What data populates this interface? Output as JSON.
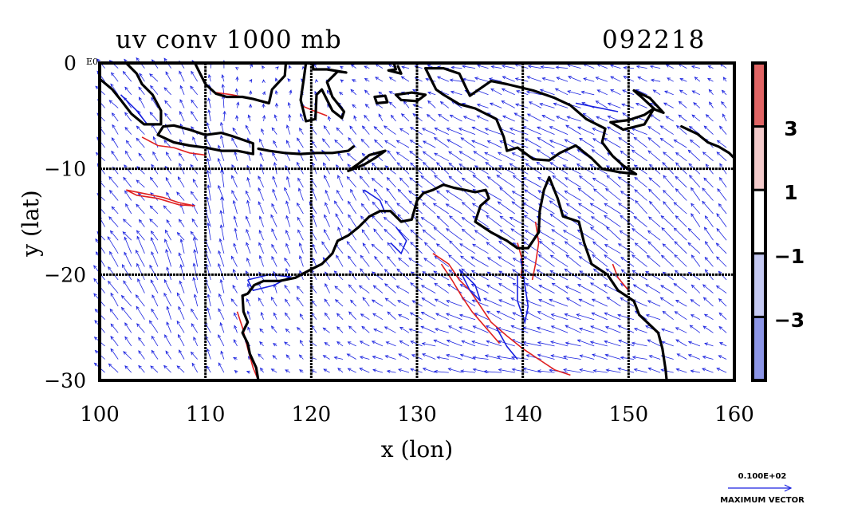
{
  "figure": {
    "title": "uv conv 1000 mb",
    "date_label": "092218",
    "xlabel": "x (lon)",
    "ylabel": "y (lat)",
    "y_top_tick": "0",
    "y_top_suffix": "E0",
    "x_ticks": [
      "100",
      "110",
      "120",
      "130",
      "140",
      "150",
      "160"
    ],
    "y_ticks": [
      "−10",
      "−20",
      "−30"
    ],
    "xlim": [
      100,
      160
    ],
    "ylim": [
      -30,
      0
    ],
    "colorbar": {
      "labels": [
        "3",
        "1",
        "−1",
        "−3"
      ],
      "bands": [
        "#e06464",
        "#f3caca",
        "#ffffff",
        "#c5c9f2",
        "#8c95e6"
      ]
    },
    "vector_legend": {
      "value": "0.100E+02",
      "label": "MAXIMUM VECTOR"
    }
  },
  "colors": {
    "vector": "#1a22e0",
    "positive_contour": "#e02020",
    "negative_contour": "#1a22e0",
    "coastline": "#000000",
    "grid": "#000000"
  },
  "chart_data": {
    "type": "vector-field-map",
    "title": "uv conv 1000 mb",
    "date": "092218",
    "xlabel": "x (lon)",
    "ylabel": "y (lat)",
    "xlim": [
      100,
      160
    ],
    "ylim": [
      -30,
      0
    ],
    "x_ticks": [
      100,
      110,
      120,
      130,
      140,
      150,
      160
    ],
    "y_ticks": [
      0,
      -10,
      -20,
      -30
    ],
    "contour_levels": [
      -3,
      -1,
      1,
      3
    ],
    "vector_scale_max": 10.0,
    "coastlines": {
      "australia": [
        [
          113.5,
          -22
        ],
        [
          114,
          -21.8
        ],
        [
          114.6,
          -21
        ],
        [
          115.5,
          -20.6
        ],
        [
          117,
          -20.6
        ],
        [
          118.5,
          -20.3
        ],
        [
          120,
          -19.5
        ],
        [
          121,
          -19
        ],
        [
          122,
          -18
        ],
        [
          122.5,
          -16.8
        ],
        [
          123.5,
          -16.3
        ],
        [
          124.5,
          -15.5
        ],
        [
          125.5,
          -14.5
        ],
        [
          126.5,
          -14
        ],
        [
          127.5,
          -14
        ],
        [
          128.5,
          -15
        ],
        [
          129.5,
          -14.8
        ],
        [
          130,
          -13
        ],
        [
          130.6,
          -12.3
        ],
        [
          131.5,
          -12
        ],
        [
          132.5,
          -11.5
        ],
        [
          133.5,
          -11.8
        ],
        [
          134.5,
          -12
        ],
        [
          135.5,
          -12.2
        ],
        [
          136.5,
          -12
        ],
        [
          136.8,
          -12.8
        ],
        [
          136,
          -13.5
        ],
        [
          135.5,
          -15
        ],
        [
          137,
          -16
        ],
        [
          138.5,
          -16.8
        ],
        [
          139.5,
          -17.5
        ],
        [
          140.5,
          -17.5
        ],
        [
          141.5,
          -16
        ],
        [
          141.6,
          -14
        ],
        [
          142,
          -12
        ],
        [
          142.5,
          -10.8
        ],
        [
          143.3,
          -12.8
        ],
        [
          143.8,
          -14.5
        ],
        [
          145.3,
          -15
        ],
        [
          145.8,
          -17
        ],
        [
          146.5,
          -19
        ],
        [
          148,
          -20
        ],
        [
          149,
          -21.5
        ],
        [
          150.5,
          -22.5
        ],
        [
          151,
          -23.8
        ],
        [
          152.8,
          -25.5
        ],
        [
          153.2,
          -27
        ],
        [
          153.5,
          -29
        ],
        [
          153.6,
          -30
        ]
      ],
      "wa_southwest": [
        [
          113.5,
          -22
        ],
        [
          113.6,
          -23.5
        ],
        [
          114,
          -24.5
        ],
        [
          113.5,
          -25.5
        ],
        [
          114,
          -26.5
        ],
        [
          114.2,
          -27.5
        ],
        [
          114.8,
          -28.8
        ],
        [
          115,
          -30
        ]
      ],
      "sumatra": [
        [
          100,
          -1.5
        ],
        [
          101.2,
          -2.5
        ],
        [
          102,
          -3.5
        ],
        [
          103,
          -4.8
        ],
        [
          104.2,
          -5.8
        ],
        [
          105.8,
          -5.8
        ],
        [
          105.8,
          -4.5
        ],
        [
          105,
          -3
        ],
        [
          104,
          -2
        ],
        [
          103.5,
          -1
        ],
        [
          102.5,
          0
        ]
      ],
      "java": [
        [
          106,
          -6
        ],
        [
          107,
          -5.9
        ],
        [
          108.5,
          -6.3
        ],
        [
          110,
          -6.8
        ],
        [
          111.5,
          -6.6
        ],
        [
          112.5,
          -6.9
        ],
        [
          114.5,
          -7.6
        ],
        [
          114.5,
          -8.6
        ],
        [
          113,
          -8.3
        ],
        [
          111.5,
          -8.3
        ],
        [
          110,
          -8
        ],
        [
          108.5,
          -7.8
        ],
        [
          107,
          -7.5
        ],
        [
          105.5,
          -6.8
        ],
        [
          106,
          -6
        ]
      ],
      "lesser_sunda": [
        [
          115,
          -8.1
        ],
        [
          116,
          -8.3
        ],
        [
          117.5,
          -8.5
        ],
        [
          119,
          -8.6
        ],
        [
          120.5,
          -8.5
        ],
        [
          122,
          -8.5
        ],
        [
          123.5,
          -8.3
        ],
        [
          124,
          -7.9
        ]
      ],
      "timor": [
        [
          123.5,
          -10.2
        ],
        [
          124.5,
          -9.5
        ],
        [
          125.5,
          -8.7
        ],
        [
          127,
          -8.3
        ],
        [
          126,
          -9
        ],
        [
          125,
          -9.6
        ],
        [
          123.5,
          -10.2
        ]
      ],
      "borneo": [
        [
          109,
          0
        ],
        [
          109.5,
          -1
        ],
        [
          110,
          -2
        ],
        [
          111,
          -2.9
        ],
        [
          112,
          -3.2
        ],
        [
          113.5,
          -3.2
        ],
        [
          114.5,
          -3.4
        ],
        [
          116,
          -3.8
        ],
        [
          116.3,
          -2.5
        ],
        [
          117.5,
          -1.2
        ],
        [
          117.6,
          0
        ]
      ],
      "sulawesi": [
        [
          119.5,
          0
        ],
        [
          119.3,
          -1.5
        ],
        [
          119,
          -3.5
        ],
        [
          119.5,
          -5.5
        ],
        [
          120.4,
          -5.3
        ],
        [
          120.5,
          -3
        ],
        [
          121,
          -2.5
        ],
        [
          122,
          -4.5
        ],
        [
          122.9,
          -5.2
        ],
        [
          123.1,
          -4.6
        ],
        [
          122,
          -3.2
        ],
        [
          121.5,
          -1.8
        ],
        [
          122.5,
          -0.8
        ],
        [
          123.3,
          -0.9
        ],
        [
          121.5,
          -0.6
        ],
        [
          120.2,
          -0.6
        ],
        [
          120.1,
          0
        ]
      ],
      "new_guinea": [
        [
          130.8,
          -0.5
        ],
        [
          132.5,
          -0.5
        ],
        [
          134,
          -1
        ],
        [
          135,
          -3.1
        ],
        [
          137,
          -1.7
        ],
        [
          138.5,
          -2
        ],
        [
          141,
          -2.6
        ],
        [
          143,
          -3.3
        ],
        [
          144.5,
          -4
        ],
        [
          146,
          -5.3
        ],
        [
          147.8,
          -6.2
        ],
        [
          147.5,
          -7.5
        ],
        [
          148.5,
          -8.8
        ],
        [
          149.5,
          -9.7
        ],
        [
          150.7,
          -10.5
        ],
        [
          149,
          -10.3
        ],
        [
          147.5,
          -10
        ],
        [
          146.5,
          -9
        ],
        [
          145,
          -7.8
        ],
        [
          143.5,
          -8.5
        ],
        [
          142.5,
          -9.2
        ],
        [
          141,
          -9.1
        ],
        [
          139.5,
          -8
        ],
        [
          138.5,
          -8.3
        ],
        [
          138.2,
          -7
        ],
        [
          137.5,
          -5.3
        ],
        [
          135.5,
          -4.3
        ],
        [
          134,
          -3.9
        ],
        [
          132.5,
          -3
        ],
        [
          131.8,
          -2.5
        ],
        [
          130.8,
          -0.5
        ]
      ],
      "new_britain": [
        [
          148.3,
          -5.6
        ],
        [
          150,
          -5.4
        ],
        [
          151.5,
          -4.9
        ],
        [
          152.4,
          -4.3
        ],
        [
          151.5,
          -5.8
        ],
        [
          149.5,
          -6.3
        ],
        [
          148.3,
          -5.6
        ]
      ],
      "new_ireland": [
        [
          150.5,
          -2.6
        ],
        [
          152,
          -3.3
        ],
        [
          153.3,
          -4.7
        ],
        [
          152.5,
          -4.4
        ],
        [
          151.2,
          -3.2
        ],
        [
          150.5,
          -2.6
        ]
      ],
      "solomons": [
        [
          155,
          -6
        ],
        [
          156.5,
          -6.7
        ],
        [
          157.5,
          -7.5
        ],
        [
          158.5,
          -7.9
        ],
        [
          159.5,
          -8.5
        ],
        [
          160,
          -9
        ]
      ],
      "halmahera": [
        [
          127.8,
          0
        ],
        [
          128,
          -0.6
        ],
        [
          127.3,
          -0.7
        ],
        [
          128.5,
          -1
        ],
        [
          128.2,
          -0.3
        ]
      ],
      "seram": [
        [
          128,
          -3
        ],
        [
          129.5,
          -2.8
        ],
        [
          130.8,
          -3
        ],
        [
          130,
          -3.6
        ],
        [
          128.5,
          -3.5
        ],
        [
          128,
          -3
        ]
      ],
      "buru": [
        [
          126,
          -3.2
        ],
        [
          127,
          -3.1
        ],
        [
          127.2,
          -3.7
        ],
        [
          126.2,
          -3.8
        ],
        [
          126,
          -3.2
        ]
      ],
      "tasmania_missing": []
    },
    "positive_contours": [
      [
        [
          102.5,
          -12
        ],
        [
          104,
          -12.3
        ],
        [
          106,
          -12.7
        ],
        [
          107.5,
          -13.2
        ],
        [
          109,
          -13.5
        ],
        [
          107.5,
          -13.4
        ],
        [
          105.5,
          -12.8
        ],
        [
          103.5,
          -12.5
        ],
        [
          102.5,
          -12
        ]
      ],
      [
        [
          104,
          -7
        ],
        [
          105.5,
          -7.8
        ],
        [
          107,
          -8
        ],
        [
          108.5,
          -8.5
        ],
        [
          110,
          -8.7
        ]
      ],
      [
        [
          111,
          -2.8
        ],
        [
          112.5,
          -3
        ],
        [
          114,
          -3.3
        ],
        [
          115.5,
          -3.6
        ]
      ],
      [
        [
          131.5,
          -18
        ],
        [
          133,
          -19
        ],
        [
          134,
          -20.5
        ],
        [
          135,
          -21.5
        ],
        [
          136,
          -23
        ],
        [
          137,
          -24.5
        ],
        [
          138.5,
          -25.8
        ],
        [
          140,
          -27
        ],
        [
          141.5,
          -28
        ],
        [
          143,
          -29
        ],
        [
          144.5,
          -29.5
        ]
      ],
      [
        [
          132.3,
          -19
        ],
        [
          133.3,
          -20.5
        ],
        [
          134.2,
          -22
        ],
        [
          135.2,
          -23.5
        ],
        [
          136.5,
          -25
        ],
        [
          137.8,
          -26.5
        ]
      ],
      [
        [
          141.2,
          -15
        ],
        [
          141.5,
          -17
        ],
        [
          141.2,
          -19
        ],
        [
          140.9,
          -20.5
        ]
      ],
      [
        [
          139.5,
          -17
        ],
        [
          140,
          -18.8
        ],
        [
          139.8,
          -20.3
        ]
      ],
      [
        [
          113,
          -23.5
        ],
        [
          113.5,
          -25
        ],
        [
          114,
          -27
        ],
        [
          114.5,
          -28.8
        ],
        [
          115,
          -30
        ]
      ],
      [
        [
          119,
          -4
        ],
        [
          120.2,
          -4.5
        ],
        [
          121.5,
          -5
        ]
      ],
      [
        [
          148.5,
          -19
        ],
        [
          149,
          -20.3
        ],
        [
          150,
          -21.5
        ]
      ]
    ],
    "negative_contours": [
      [
        [
          102,
          -3
        ],
        [
          103.5,
          -4.5
        ],
        [
          104.5,
          -5.8
        ]
      ],
      [
        [
          128,
          -15.5
        ],
        [
          129,
          -16.8
        ],
        [
          128.5,
          -18
        ],
        [
          127.5,
          -17
        ]
      ],
      [
        [
          134,
          -19.5
        ],
        [
          135.5,
          -21
        ],
        [
          136,
          -22.5
        ],
        [
          135,
          -21.5
        ],
        [
          134,
          -19.5
        ]
      ],
      [
        [
          139.8,
          -18.5
        ],
        [
          140.2,
          -21
        ],
        [
          140.5,
          -23
        ],
        [
          140.2,
          -24.5
        ],
        [
          139.5,
          -22.5
        ],
        [
          139.5,
          -20
        ]
      ],
      [
        [
          114,
          -20.5
        ],
        [
          116,
          -20
        ],
        [
          118,
          -20.2
        ],
        [
          116.5,
          -21
        ],
        [
          114.5,
          -21.5
        ],
        [
          114,
          -20.5
        ]
      ],
      [
        [
          145,
          -3.8
        ],
        [
          147,
          -4.2
        ],
        [
          149,
          -4.6
        ]
      ],
      [
        [
          125,
          -12
        ],
        [
          126.5,
          -13
        ],
        [
          127,
          -14.2
        ]
      ],
      [
        [
          137.5,
          -25
        ],
        [
          138.5,
          -26.8
        ],
        [
          139.5,
          -28
        ]
      ]
    ]
  }
}
